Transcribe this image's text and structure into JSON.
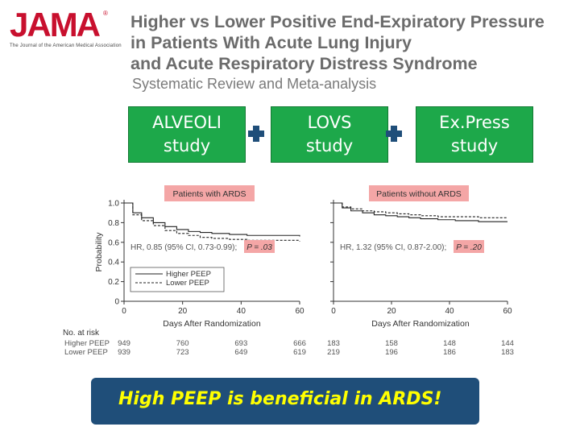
{
  "logo": {
    "text": "JAMA",
    "sub": "The Journal of the American Medical Association",
    "mark": "®"
  },
  "header": {
    "title_lines": [
      "Higher vs Lower Positive End-Expiratory Pressure",
      "in Patients With Acute Lung Injury",
      "and Acute Respiratory Distress Syndrome"
    ],
    "subtitle": "Systematic Review and Meta-analysis"
  },
  "studies": [
    {
      "line1": "ALVEOLI",
      "line2": "study"
    },
    {
      "line1": "LOVS",
      "line2": "study"
    },
    {
      "line1": "Ex.Press",
      "line2": "study"
    }
  ],
  "conclusion": "High PEEP is beneficial in ARDS!",
  "colors": {
    "study_box": "#1da84a",
    "plus": "#1f4e79",
    "conclusion_bg": "#1f4e79",
    "conclusion_text": "#ffff00",
    "panel_label_bg": "#f4a6a6",
    "hr_bg": "#f4a6a6"
  },
  "chart_data": [
    {
      "type": "line",
      "panel_label": "Patients with ARDS",
      "ylabel": "Probability",
      "xlabel": "Days After Randomization",
      "xlim": [
        0,
        60
      ],
      "ylim": [
        0,
        1.0
      ],
      "xticks": [
        "0",
        "20",
        "40",
        "60"
      ],
      "yticks": [
        "0",
        "0.2",
        "0.4",
        "0.6",
        "0.8",
        "1.0"
      ],
      "hr_text": "HR, 0.85 (95% CI, 0.73-0.99);",
      "p_text": "P = .03",
      "legend": [
        "Higher PEEP",
        "Lower PEEP"
      ],
      "series": [
        {
          "name": "Higher PEEP",
          "style": "solid",
          "x": [
            0,
            3,
            6,
            10,
            14,
            18,
            22,
            26,
            30,
            36,
            42,
            50,
            60
          ],
          "y": [
            1.0,
            0.9,
            0.85,
            0.8,
            0.76,
            0.73,
            0.71,
            0.7,
            0.69,
            0.68,
            0.67,
            0.67,
            0.66
          ]
        },
        {
          "name": "Lower PEEP",
          "style": "dashed",
          "x": [
            0,
            3,
            6,
            10,
            14,
            18,
            22,
            26,
            30,
            36,
            42,
            50,
            60
          ],
          "y": [
            1.0,
            0.88,
            0.82,
            0.77,
            0.72,
            0.69,
            0.67,
            0.65,
            0.64,
            0.63,
            0.62,
            0.62,
            0.61
          ]
        }
      ],
      "at_risk": {
        "title": "No. at risk",
        "rows": [
          {
            "label": "Higher PEEP",
            "values": [
              "949",
              "760",
              "693",
              "666"
            ]
          },
          {
            "label": "Lower PEEP",
            "values": [
              "939",
              "723",
              "649",
              "619"
            ]
          }
        ]
      }
    },
    {
      "type": "line",
      "panel_label": "Patients without ARDS",
      "xlabel": "Days After Randomization",
      "xlim": [
        0,
        60
      ],
      "ylim": [
        0,
        1.0
      ],
      "xticks": [
        "0",
        "20",
        "40",
        "60"
      ],
      "hr_text": "HR, 1.32 (95% CI, 0.87-2.00);",
      "p_text": "P = .20",
      "series": [
        {
          "name": "Higher PEEP",
          "style": "solid",
          "x": [
            0,
            3,
            6,
            10,
            14,
            18,
            22,
            26,
            30,
            36,
            42,
            50,
            60
          ],
          "y": [
            1.0,
            0.95,
            0.92,
            0.9,
            0.88,
            0.87,
            0.86,
            0.85,
            0.84,
            0.83,
            0.82,
            0.81,
            0.81
          ]
        },
        {
          "name": "Lower PEEP",
          "style": "dashed",
          "x": [
            0,
            3,
            6,
            10,
            14,
            18,
            22,
            26,
            30,
            36,
            42,
            50,
            60
          ],
          "y": [
            1.0,
            0.96,
            0.94,
            0.92,
            0.91,
            0.9,
            0.89,
            0.88,
            0.87,
            0.86,
            0.86,
            0.85,
            0.85
          ]
        }
      ],
      "at_risk": {
        "rows": [
          {
            "label": "Higher PEEP",
            "values": [
              "183",
              "158",
              "148",
              "144"
            ]
          },
          {
            "label": "Lower PEEP",
            "values": [
              "219",
              "196",
              "186",
              "183"
            ]
          }
        ]
      }
    }
  ]
}
